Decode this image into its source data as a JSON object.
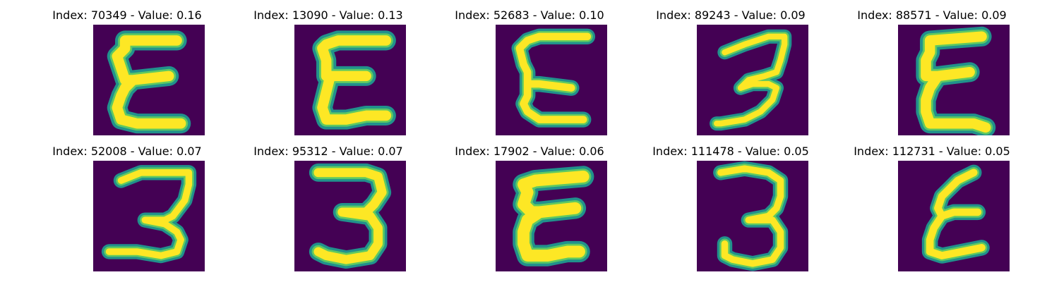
{
  "colors": {
    "background": "#440154",
    "stroke_outer": "#21918c",
    "stroke_mid": "#5ec962",
    "stroke_core": "#fde725"
  },
  "panels": [
    {
      "title": "Index: 70349 - Value: 0.16",
      "glyph": "E-shape"
    },
    {
      "title": "Index: 13090 - Value: 0.13",
      "glyph": "E-shape"
    },
    {
      "title": "Index: 52683 - Value: 0.10",
      "glyph": "epsilon-shape"
    },
    {
      "title": "Index: 89243 - Value: 0.09",
      "glyph": "three-shape"
    },
    {
      "title": "Index: 88571 - Value: 0.09",
      "glyph": "E-shape"
    },
    {
      "title": "Index: 52008 - Value: 0.07",
      "glyph": "three-shape"
    },
    {
      "title": "Index: 95312 - Value: 0.07",
      "glyph": "three-shape"
    },
    {
      "title": "Index: 17902 - Value: 0.06",
      "glyph": "E-shape"
    },
    {
      "title": "Index: 111478 - Value: 0.05",
      "glyph": "three-shape"
    },
    {
      "title": "Index: 112731 - Value: 0.05",
      "glyph": "epsilon-shape"
    }
  ]
}
